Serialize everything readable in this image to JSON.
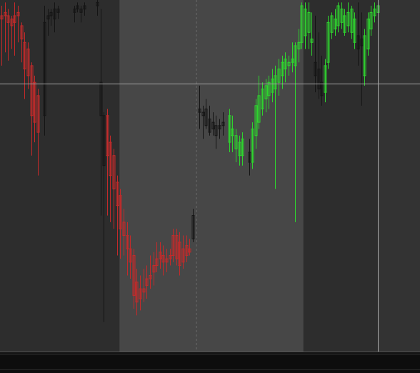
{
  "colors": {
    "background": "#2d2d2d",
    "session_highlight": "#474747",
    "right_margin_panel": "#333333",
    "bottom_bar": "#0d0d0d",
    "bottom_bar_edge": "#5a5a5a",
    "bear_color": "#c42a2a",
    "bull_color": "#2ed52e",
    "neutral_color": "#141414",
    "crosshair": "#a6a6a6",
    "divider": "#6a6a6a"
  },
  "chart_data": {
    "type": "candlestick",
    "title": "",
    "xlabel": "",
    "ylabel": "",
    "grid": false,
    "legend": "none",
    "ylim": [
      0,
      100
    ],
    "x_range": [
      0,
      124
    ],
    "crosshair": {
      "x": 114,
      "y": 79.6
    },
    "divider_x": 59,
    "highlight_sessions": [
      {
        "start": 36,
        "end": 91.5
      }
    ],
    "series": [
      {
        "name": "",
        "color_key": "bear_color",
        "candles": [
          {
            "x": 0,
            "open": 100,
            "high": 103,
            "low": 85,
            "close": 99
          },
          {
            "x": 1,
            "open": 101,
            "high": 104,
            "low": 89,
            "close": 100
          },
          {
            "x": 2,
            "open": 100,
            "high": 102,
            "low": 86.5,
            "close": 98
          },
          {
            "x": 3,
            "open": 99,
            "high": 100,
            "low": 90,
            "close": 97
          },
          {
            "x": 4,
            "open": 100,
            "high": 104,
            "low": 88,
            "close": 98
          },
          {
            "x": 5,
            "open": 101,
            "high": 103,
            "low": 92,
            "close": 100
          },
          {
            "x": 6,
            "open": 97,
            "high": 98,
            "low": 86,
            "close": 93
          },
          {
            "x": 7,
            "open": 92,
            "high": 95,
            "low": 75,
            "close": 84
          },
          {
            "x": 8,
            "open": 90,
            "high": 92,
            "low": 78,
            "close": 82
          },
          {
            "x": 9,
            "open": 85,
            "high": 86,
            "low": 58,
            "close": 70
          },
          {
            "x": 10,
            "open": 80,
            "high": 82,
            "low": 62,
            "close": 68
          },
          {
            "x": 11,
            "open": 76,
            "high": 78,
            "low": 52,
            "close": 65
          },
          {
            "x": 32,
            "open": 70,
            "high": 72,
            "low": 40,
            "close": 58
          },
          {
            "x": 33,
            "open": 62,
            "high": 64,
            "low": 38,
            "close": 52
          },
          {
            "x": 34,
            "open": 58,
            "high": 60,
            "low": 36,
            "close": 48
          },
          {
            "x": 35,
            "open": 50,
            "high": 52,
            "low": 28,
            "close": 43
          },
          {
            "x": 36,
            "open": 46,
            "high": 48,
            "low": 27,
            "close": 36
          },
          {
            "x": 37,
            "open": 38,
            "high": 42,
            "low": 28,
            "close": 34
          },
          {
            "x": 38,
            "open": 34,
            "high": 38,
            "low": 22,
            "close": 30
          },
          {
            "x": 39,
            "open": 30,
            "high": 34,
            "low": 21,
            "close": 26
          },
          {
            "x": 40,
            "open": 28,
            "high": 30,
            "low": 12,
            "close": 16
          },
          {
            "x": 41,
            "open": 20,
            "high": 24,
            "low": 10,
            "close": 14
          },
          {
            "x": 42,
            "open": 18,
            "high": 22,
            "low": 11.5,
            "close": 15
          },
          {
            "x": 43,
            "open": 18,
            "high": 24,
            "low": 14,
            "close": 17
          },
          {
            "x": 44,
            "open": 21,
            "high": 25,
            "low": 15,
            "close": 19
          },
          {
            "x": 45,
            "open": 22,
            "high": 28,
            "low": 18,
            "close": 21
          },
          {
            "x": 46,
            "open": 25,
            "high": 29,
            "low": 19,
            "close": 23
          },
          {
            "x": 47,
            "open": 27,
            "high": 32,
            "low": 23,
            "close": 25
          },
          {
            "x": 48,
            "open": 29,
            "high": 32,
            "low": 24,
            "close": 27
          },
          {
            "x": 49,
            "open": 28,
            "high": 31,
            "low": 22,
            "close": 26
          },
          {
            "x": 50,
            "open": 27,
            "high": 30,
            "low": 23,
            "close": 26
          },
          {
            "x": 51,
            "open": 28,
            "high": 30,
            "low": 25,
            "close": 27
          },
          {
            "x": 52,
            "open": 34,
            "high": 36,
            "low": 26,
            "close": 28
          },
          {
            "x": 53,
            "open": 34,
            "high": 36,
            "low": 25,
            "close": 27
          },
          {
            "x": 54,
            "open": 32,
            "high": 35,
            "low": 22,
            "close": 25
          },
          {
            "x": 55,
            "open": 30,
            "high": 34,
            "low": 24,
            "close": 26
          },
          {
            "x": 56,
            "open": 31,
            "high": 34,
            "low": 26,
            "close": 28
          },
          {
            "x": 57,
            "open": 30,
            "high": 33,
            "low": 28,
            "close": 29
          }
        ]
      },
      {
        "name": "",
        "color_key": "neutral_color",
        "candles": [
          {
            "x": 13,
            "open": 70,
            "high": 103,
            "low": 64,
            "close": 98
          },
          {
            "x": 14,
            "open": 99,
            "high": 102,
            "low": 94,
            "close": 100
          },
          {
            "x": 15,
            "open": 100,
            "high": 102,
            "low": 97,
            "close": 101
          },
          {
            "x": 16,
            "open": 99,
            "high": 104,
            "low": 95,
            "close": 102
          },
          {
            "x": 17,
            "open": 101,
            "high": 103,
            "low": 99,
            "close": 102
          },
          {
            "x": 22,
            "open": 101,
            "high": 103,
            "low": 98,
            "close": 102
          },
          {
            "x": 23,
            "open": 102,
            "high": 104,
            "low": 101,
            "close": 103
          },
          {
            "x": 24,
            "open": 101,
            "high": 103,
            "low": 98,
            "close": 102
          },
          {
            "x": 25,
            "open": 102,
            "high": 104,
            "low": 100,
            "close": 103
          },
          {
            "x": 29,
            "open": 103,
            "high": 105,
            "low": 100,
            "close": 104
          },
          {
            "x": 30,
            "open": 80,
            "high": 102,
            "low": 40,
            "close": 70
          },
          {
            "x": 31,
            "open": 70,
            "high": 71,
            "low": 8,
            "close": 55
          },
          {
            "x": 58,
            "open": 33,
            "high": 42,
            "low": 32,
            "close": 40
          },
          {
            "x": 60,
            "open": 72,
            "high": 79,
            "low": 66,
            "close": 71
          },
          {
            "x": 61,
            "open": 71,
            "high": 73,
            "low": 63,
            "close": 70
          },
          {
            "x": 62,
            "open": 72,
            "high": 75,
            "low": 66,
            "close": 67
          },
          {
            "x": 63,
            "open": 69,
            "high": 73,
            "low": 64,
            "close": 65
          },
          {
            "x": 64,
            "open": 68,
            "high": 71,
            "low": 64,
            "close": 66
          },
          {
            "x": 65,
            "open": 67,
            "high": 70,
            "low": 60,
            "close": 64
          },
          {
            "x": 66,
            "open": 67,
            "high": 69,
            "low": 63,
            "close": 66
          },
          {
            "x": 67,
            "open": 68,
            "high": 71,
            "low": 64,
            "close": 67
          },
          {
            "x": 75,
            "open": 59,
            "high": 63,
            "low": 52,
            "close": 56
          },
          {
            "x": 95,
            "open": 86,
            "high": 100,
            "low": 77,
            "close": 82
          },
          {
            "x": 96,
            "open": 84,
            "high": 95,
            "low": 75,
            "close": 78
          },
          {
            "x": 97,
            "open": 80,
            "high": 88,
            "low": 73,
            "close": 76
          },
          {
            "x": 108,
            "open": 94,
            "high": 104,
            "low": 85,
            "close": 90
          },
          {
            "x": 109,
            "open": 93,
            "high": 101,
            "low": 73,
            "close": 91
          }
        ]
      },
      {
        "name": "",
        "color_key": "bull_color",
        "candles": [
          {
            "x": 69,
            "open": 62,
            "high": 72,
            "low": 59,
            "close": 70
          },
          {
            "x": 70,
            "open": 64,
            "high": 70,
            "low": 59,
            "close": 66
          },
          {
            "x": 71,
            "open": 60,
            "high": 66,
            "low": 56,
            "close": 64
          },
          {
            "x": 72,
            "open": 58,
            "high": 64,
            "low": 55,
            "close": 62
          },
          {
            "x": 73,
            "open": 58,
            "high": 65,
            "low": 55,
            "close": 63
          },
          {
            "x": 76,
            "open": 56,
            "high": 68,
            "low": 54,
            "close": 66
          },
          {
            "x": 77,
            "open": 64,
            "high": 75,
            "low": 60,
            "close": 73
          },
          {
            "x": 78,
            "open": 68,
            "high": 82,
            "low": 66,
            "close": 76
          },
          {
            "x": 79,
            "open": 72,
            "high": 80,
            "low": 70,
            "close": 78
          },
          {
            "x": 80,
            "open": 75,
            "high": 81,
            "low": 71,
            "close": 79
          },
          {
            "x": 81,
            "open": 76,
            "high": 82,
            "low": 72,
            "close": 80
          },
          {
            "x": 82,
            "open": 77,
            "high": 84,
            "low": 74,
            "close": 81
          },
          {
            "x": 83,
            "open": 78,
            "high": 85,
            "low": 48,
            "close": 82
          },
          {
            "x": 84,
            "open": 80,
            "high": 87,
            "low": 76,
            "close": 84
          },
          {
            "x": 85,
            "open": 82,
            "high": 88,
            "low": 78,
            "close": 86
          },
          {
            "x": 86,
            "open": 84,
            "high": 89,
            "low": 80,
            "close": 87
          },
          {
            "x": 87,
            "open": 85,
            "high": 88,
            "low": 82,
            "close": 86
          },
          {
            "x": 88,
            "open": 86,
            "high": 92,
            "low": 83,
            "close": 87
          },
          {
            "x": 89,
            "open": 85,
            "high": 92,
            "low": 38,
            "close": 91
          },
          {
            "x": 90,
            "open": 90,
            "high": 96,
            "low": 86,
            "close": 92
          },
          {
            "x": 91,
            "open": 92,
            "high": 104,
            "low": 90,
            "close": 103
          },
          {
            "x": 92,
            "open": 94,
            "high": 104,
            "low": 90,
            "close": 102
          },
          {
            "x": 93,
            "open": 95,
            "high": 104,
            "low": 90,
            "close": 101
          },
          {
            "x": 94,
            "open": 92,
            "high": 101,
            "low": 88,
            "close": 93
          },
          {
            "x": 98,
            "open": 77,
            "high": 87,
            "low": 74,
            "close": 85
          },
          {
            "x": 99,
            "open": 86,
            "high": 100,
            "low": 84,
            "close": 98
          },
          {
            "x": 100,
            "open": 95,
            "high": 101,
            "low": 93,
            "close": 100
          },
          {
            "x": 101,
            "open": 96,
            "high": 102,
            "low": 94,
            "close": 99
          },
          {
            "x": 102,
            "open": 97,
            "high": 104,
            "low": 95,
            "close": 103
          },
          {
            "x": 103,
            "open": 98,
            "high": 104,
            "low": 96,
            "close": 102
          },
          {
            "x": 104,
            "open": 95,
            "high": 102,
            "low": 94,
            "close": 100
          },
          {
            "x": 105,
            "open": 97,
            "high": 104,
            "low": 95,
            "close": 101
          },
          {
            "x": 106,
            "open": 95,
            "high": 103,
            "low": 93,
            "close": 102
          },
          {
            "x": 107,
            "open": 92,
            "high": 101,
            "low": 90,
            "close": 99
          },
          {
            "x": 110,
            "open": 82,
            "high": 96,
            "low": 79,
            "close": 94
          },
          {
            "x": 111,
            "open": 90,
            "high": 101,
            "low": 88,
            "close": 99
          },
          {
            "x": 112,
            "open": 96,
            "high": 103,
            "low": 94,
            "close": 101
          },
          {
            "x": 113,
            "open": 100,
            "high": 104,
            "low": 98,
            "close": 102
          },
          {
            "x": 114,
            "open": 101,
            "high": 104,
            "low": 99,
            "close": 103
          }
        ]
      }
    ]
  }
}
